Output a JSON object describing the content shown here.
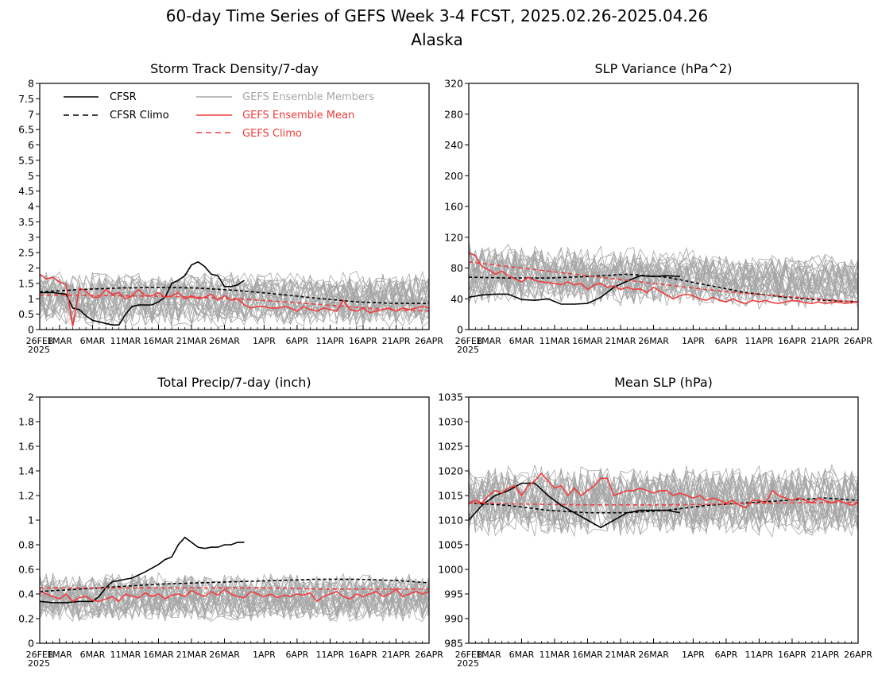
{
  "page": {
    "title": "60-day Time Series of GEFS Week 3-4 FCST, 2025.02.26-2025.04.26",
    "subtitle": "Alaska"
  },
  "x_axis": {
    "ticks": [
      "26FEB",
      "1MAR",
      "6MAR",
      "11MAR",
      "16MAR",
      "21MAR",
      "26MAR",
      "1APR",
      "6APR",
      "11APR",
      "16APR",
      "21APR",
      "26APR"
    ],
    "tick_days": [
      0,
      3,
      8,
      13,
      18,
      23,
      28,
      34,
      39,
      44,
      49,
      54,
      59
    ],
    "year_label": "2025"
  },
  "legend": {
    "cfsr": "CFSR",
    "cfsr_climo": "CFSR Climo",
    "members": "GEFS Ensemble Members",
    "mean": "GEFS Ensemble Mean",
    "gefs_climo": "GEFS Climo"
  },
  "colors": {
    "cfsr": "#000000",
    "members": "#a6a6a6",
    "mean": "#f03c3c",
    "gefs_climo": "#f03c3c"
  },
  "chart_data": [
    {
      "type": "line",
      "title": "Storm Track Density/7-day",
      "ylim": [
        0,
        8
      ],
      "yticks": [
        "0",
        "0.5",
        "1",
        "1.5",
        "2",
        "2.5",
        "3",
        "3.5",
        "4",
        "4.5",
        "5",
        "5.5",
        "6",
        "6.5",
        "7",
        "7.5",
        "8"
      ],
      "member_spread": {
        "center": 1.0,
        "amplitude": 0.75
      },
      "series": [
        {
          "name": "CFSR",
          "x": [
            0,
            2,
            4,
            5,
            6,
            7,
            8,
            9,
            10,
            11,
            12,
            13,
            14,
            15,
            16,
            17,
            18,
            19,
            20,
            21,
            22,
            23,
            24,
            25,
            26,
            27,
            28,
            29,
            30,
            31
          ],
          "y": [
            1.2,
            1.2,
            1.15,
            0.7,
            0.65,
            0.45,
            0.3,
            0.25,
            0.2,
            0.15,
            0.15,
            0.5,
            0.75,
            0.8,
            0.8,
            0.8,
            0.9,
            1.05,
            1.5,
            1.6,
            1.75,
            2.1,
            2.2,
            2.05,
            1.8,
            1.75,
            1.4,
            1.4,
            1.45,
            1.6
          ]
        },
        {
          "name": "CFSR Climo",
          "x": [
            0,
            6,
            12,
            18,
            24,
            30,
            36,
            42,
            48,
            54,
            59
          ],
          "y": [
            1.22,
            1.3,
            1.35,
            1.37,
            1.35,
            1.27,
            1.15,
            1.02,
            0.9,
            0.85,
            0.85
          ]
        },
        {
          "name": "GEFS Ensemble Mean",
          "x": [
            0,
            1,
            2,
            3,
            4,
            5,
            6,
            7,
            8,
            9,
            10,
            11,
            12,
            13,
            14,
            15,
            16,
            17,
            18,
            19,
            20,
            21,
            22,
            23,
            24,
            25,
            26,
            27,
            28,
            29,
            30,
            31,
            32,
            33,
            34,
            35,
            36,
            37,
            38,
            39,
            40,
            41,
            42,
            43,
            44,
            45,
            46,
            47,
            48,
            49,
            50,
            51,
            52,
            53,
            54,
            55,
            56,
            57,
            58,
            59
          ],
          "y": [
            1.8,
            1.65,
            1.7,
            1.55,
            1.45,
            0.1,
            1.35,
            1.25,
            1.05,
            1.05,
            1.3,
            1.15,
            1.2,
            1.0,
            1.1,
            1.3,
            1.1,
            1.1,
            1.2,
            1.05,
            1.1,
            1.2,
            1.0,
            1.1,
            1.0,
            1.05,
            1.15,
            0.95,
            1.1,
            0.95,
            1.0,
            0.8,
            0.7,
            0.75,
            0.75,
            0.7,
            0.7,
            0.75,
            0.7,
            0.6,
            0.75,
            0.65,
            0.6,
            0.7,
            0.65,
            0.6,
            0.95,
            0.65,
            0.6,
            0.7,
            0.55,
            0.6,
            0.65,
            0.7,
            0.6,
            0.7,
            0.65,
            0.7,
            0.75,
            0.7
          ]
        },
        {
          "name": "GEFS Climo",
          "x": [
            0,
            6,
            12,
            18,
            24,
            30,
            36,
            42,
            48,
            54,
            59
          ],
          "y": [
            1.12,
            1.12,
            1.1,
            1.08,
            1.05,
            1.0,
            0.92,
            0.82,
            0.72,
            0.64,
            0.6
          ]
        }
      ]
    },
    {
      "type": "line",
      "title": "SLP Variance (hPa^2)",
      "ylim": [
        0,
        320
      ],
      "yticks": [
        "0",
        "40",
        "80",
        "120",
        "160",
        "200",
        "240",
        "280",
        "320"
      ],
      "member_spread": {
        "center": 60,
        "amplitude": 30
      },
      "series": [
        {
          "name": "CFSR",
          "x": [
            0,
            2,
            4,
            6,
            8,
            10,
            12,
            14,
            16,
            18,
            20,
            22,
            24,
            26,
            28,
            30,
            32
          ],
          "y": [
            42,
            45,
            46,
            46,
            39,
            38,
            40,
            33,
            33,
            34,
            42,
            55,
            63,
            70,
            69,
            70,
            69
          ]
        },
        {
          "name": "CFSR Climo",
          "x": [
            0,
            6,
            12,
            18,
            24,
            30,
            36,
            42,
            48,
            54,
            59
          ],
          "y": [
            68,
            67,
            67,
            69,
            72,
            68,
            58,
            48,
            42,
            38,
            36
          ]
        },
        {
          "name": "GEFS Ensemble Mean",
          "x": [
            0,
            1,
            2,
            3,
            4,
            5,
            6,
            7,
            8,
            9,
            10,
            11,
            12,
            13,
            14,
            15,
            16,
            17,
            18,
            19,
            20,
            21,
            22,
            23,
            24,
            25,
            26,
            27,
            28,
            29,
            30,
            31,
            32,
            33,
            34,
            35,
            36,
            37,
            38,
            39,
            40,
            41,
            42,
            43,
            44,
            45,
            46,
            47,
            48,
            49,
            50,
            51,
            52,
            53,
            54,
            55,
            56,
            57,
            58,
            59
          ],
          "y": [
            100,
            96,
            82,
            78,
            72,
            76,
            70,
            66,
            62,
            68,
            64,
            62,
            61,
            60,
            58,
            62,
            58,
            60,
            52,
            58,
            60,
            55,
            57,
            52,
            55,
            52,
            53,
            48,
            55,
            50,
            45,
            40,
            44,
            46,
            44,
            40,
            38,
            42,
            38,
            36,
            40,
            36,
            34,
            38,
            36,
            38,
            35,
            34,
            36,
            38,
            37,
            35,
            34,
            36,
            34,
            35,
            36,
            34,
            35,
            36
          ]
        },
        {
          "name": "GEFS Climo",
          "x": [
            0,
            6,
            12,
            18,
            24,
            30,
            36,
            42,
            48,
            54,
            59
          ],
          "y": [
            88,
            82,
            76,
            70,
            64,
            58,
            52,
            47,
            43,
            39,
            36
          ]
        }
      ]
    },
    {
      "type": "line",
      "title": "Total Precip/7-day (inch)",
      "ylim": [
        0,
        2
      ],
      "yticks": [
        "0",
        "0.2",
        "0.4",
        "0.6",
        "0.8",
        "1",
        "1.2",
        "1.4",
        "1.6",
        "1.8",
        "2"
      ],
      "member_spread": {
        "center": 0.38,
        "amplitude": 0.17
      },
      "series": [
        {
          "name": "CFSR",
          "x": [
            0,
            2,
            4,
            6,
            8,
            9,
            10,
            11,
            12,
            13,
            14,
            16,
            18,
            19,
            20,
            21,
            22,
            23,
            24,
            25,
            26,
            27,
            28,
            29,
            30,
            31
          ],
          "y": [
            0.34,
            0.33,
            0.33,
            0.34,
            0.34,
            0.38,
            0.45,
            0.5,
            0.51,
            0.52,
            0.53,
            0.58,
            0.64,
            0.68,
            0.7,
            0.8,
            0.86,
            0.82,
            0.78,
            0.77,
            0.78,
            0.78,
            0.8,
            0.8,
            0.82,
            0.82
          ]
        },
        {
          "name": "CFSR Climo",
          "x": [
            0,
            6,
            12,
            18,
            24,
            30,
            36,
            42,
            48,
            54,
            59
          ],
          "y": [
            0.42,
            0.44,
            0.46,
            0.48,
            0.49,
            0.5,
            0.51,
            0.52,
            0.52,
            0.51,
            0.49
          ]
        },
        {
          "name": "GEFS Ensemble Mean",
          "x": [
            0,
            1,
            2,
            3,
            4,
            5,
            6,
            7,
            8,
            9,
            10,
            11,
            12,
            13,
            14,
            15,
            16,
            17,
            18,
            19,
            20,
            21,
            22,
            23,
            24,
            25,
            26,
            27,
            28,
            29,
            30,
            31,
            32,
            33,
            34,
            35,
            36,
            37,
            38,
            39,
            40,
            41,
            42,
            43,
            44,
            45,
            46,
            47,
            48,
            49,
            50,
            51,
            52,
            53,
            54,
            55,
            56,
            57,
            58,
            59
          ],
          "y": [
            0.42,
            0.4,
            0.38,
            0.36,
            0.4,
            0.34,
            0.37,
            0.38,
            0.35,
            0.34,
            0.36,
            0.38,
            0.34,
            0.4,
            0.38,
            0.37,
            0.41,
            0.38,
            0.4,
            0.36,
            0.39,
            0.4,
            0.38,
            0.43,
            0.4,
            0.38,
            0.42,
            0.39,
            0.44,
            0.4,
            0.38,
            0.37,
            0.42,
            0.4,
            0.38,
            0.4,
            0.37,
            0.39,
            0.38,
            0.4,
            0.39,
            0.41,
            0.34,
            0.38,
            0.4,
            0.42,
            0.38,
            0.36,
            0.4,
            0.38,
            0.4,
            0.42,
            0.38,
            0.4,
            0.44,
            0.38,
            0.4,
            0.42,
            0.4,
            0.42
          ]
        },
        {
          "name": "GEFS Climo",
          "x": [
            0,
            6,
            12,
            18,
            24,
            30,
            36,
            42,
            48,
            54,
            59
          ],
          "y": [
            0.45,
            0.45,
            0.45,
            0.45,
            0.45,
            0.45,
            0.45,
            0.44,
            0.44,
            0.44,
            0.44
          ]
        }
      ]
    },
    {
      "type": "line",
      "title": "Mean SLP (hPa)",
      "ylim": [
        985,
        1035
      ],
      "yticks": [
        "985",
        "990",
        "995",
        "1000",
        "1005",
        "1010",
        "1015",
        "1020",
        "1025",
        "1030",
        "1035"
      ],
      "member_spread": {
        "center": 1014,
        "amplitude": 6
      },
      "series": [
        {
          "name": "CFSR",
          "x": [
            0,
            2,
            4,
            6,
            8,
            10,
            12,
            14,
            16,
            18,
            20,
            22,
            24,
            26,
            28,
            30,
            32
          ],
          "y": [
            1010,
            1013,
            1015,
            1016,
            1017.5,
            1017.5,
            1015,
            1013,
            1011.5,
            1010,
            1008.5,
            1010,
            1011.5,
            1012,
            1012,
            1012,
            1011.5
          ]
        },
        {
          "name": "CFSR Climo",
          "x": [
            0,
            6,
            12,
            18,
            24,
            30,
            36,
            42,
            48,
            54,
            59
          ],
          "y": [
            1013.5,
            1013,
            1012,
            1011.5,
            1011.5,
            1012,
            1013,
            1013.5,
            1014,
            1014.5,
            1014
          ]
        },
        {
          "name": "GEFS Ensemble Mean",
          "x": [
            0,
            1,
            2,
            3,
            4,
            5,
            6,
            7,
            8,
            9,
            10,
            11,
            12,
            13,
            14,
            15,
            16,
            17,
            18,
            19,
            20,
            21,
            22,
            23,
            24,
            25,
            26,
            27,
            28,
            29,
            30,
            31,
            32,
            33,
            34,
            35,
            36,
            37,
            38,
            39,
            40,
            41,
            42,
            43,
            44,
            45,
            46,
            47,
            48,
            49,
            50,
            51,
            52,
            53,
            54,
            55,
            56,
            57,
            58,
            59
          ],
          "y": [
            1013.5,
            1014,
            1013.5,
            1015,
            1016,
            1015.5,
            1016.5,
            1017,
            1015,
            1017,
            1018,
            1019.5,
            1018,
            1016.5,
            1017,
            1015,
            1016.5,
            1015,
            1016,
            1017,
            1018.5,
            1018.5,
            1015,
            1015.5,
            1016,
            1016,
            1016.5,
            1016,
            1015.5,
            1016,
            1016,
            1015,
            1015.5,
            1015,
            1014.5,
            1015,
            1014,
            1014.5,
            1014,
            1013.5,
            1014,
            1013,
            1012.5,
            1014,
            1014,
            1013.5,
            1016,
            1015,
            1014.5,
            1014,
            1014.5,
            1014,
            1013.5,
            1014.5,
            1014,
            1013.5,
            1014,
            1013.5,
            1013,
            1013.5
          ]
        },
        {
          "name": "GEFS Climo",
          "x": [
            0,
            6,
            12,
            18,
            24,
            30,
            36,
            42,
            48,
            54,
            59
          ],
          "y": [
            1013.5,
            1013.3,
            1013.2,
            1013.1,
            1013.1,
            1013.1,
            1013.2,
            1013.4,
            1013.5,
            1013.6,
            1013.6
          ]
        }
      ]
    }
  ]
}
